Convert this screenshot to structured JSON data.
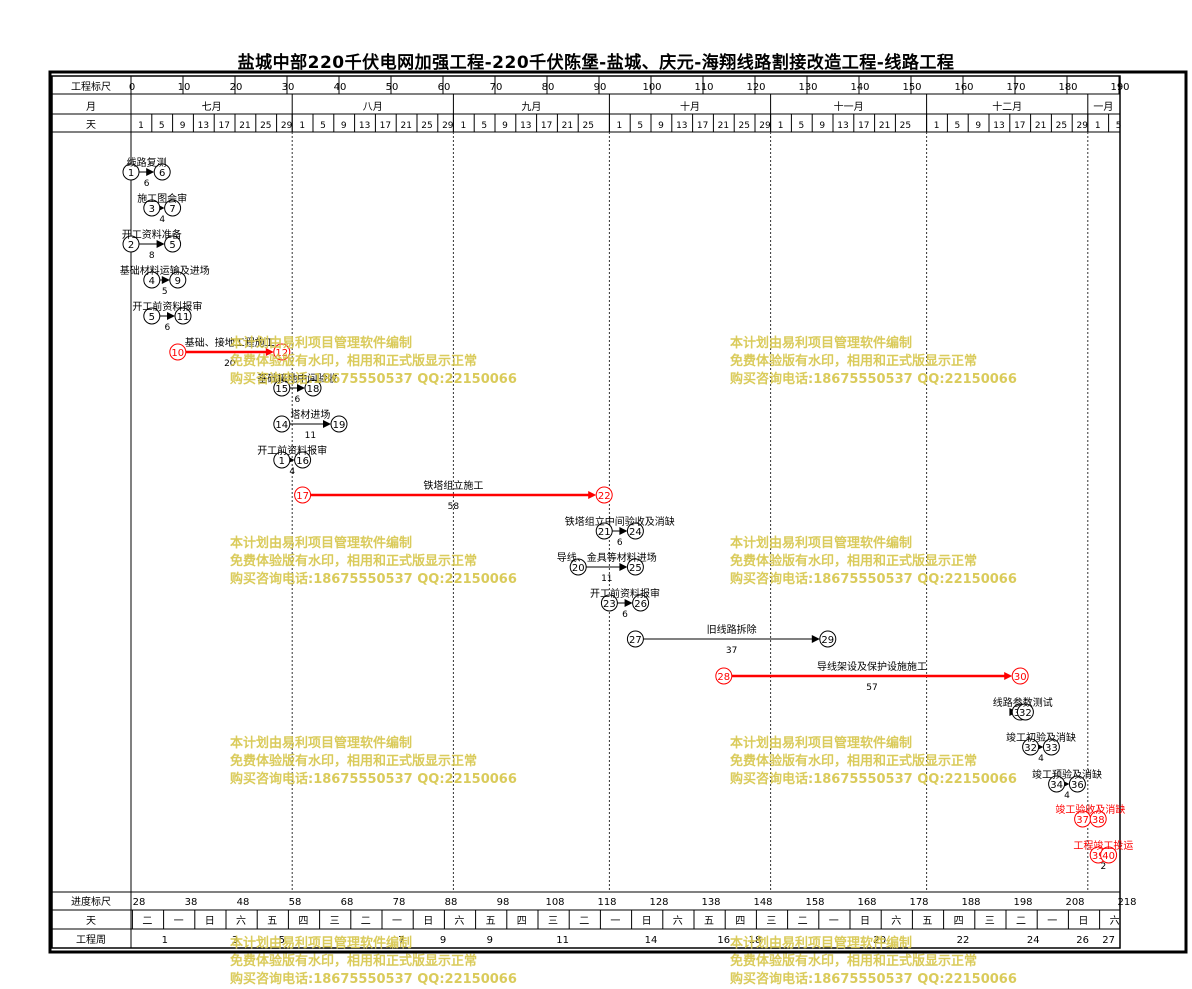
{
  "title": "盐城中部220千伏电网加强工程-220千伏陈堡-盐城、庆元-海翔线路割接改造工程-线路工程",
  "header": {
    "scale_label": "工程标尺",
    "month_label": "月",
    "day_label": "天",
    "scale_ticks": [
      "0",
      "10",
      "20",
      "30",
      "40",
      "50",
      "60",
      "70",
      "80",
      "90",
      "100",
      "110",
      "120",
      "130",
      "140",
      "150",
      "160",
      "170",
      "180",
      "190"
    ],
    "months": [
      {
        "label": "七月",
        "start": 0,
        "end": 31
      },
      {
        "label": "八月",
        "start": 31,
        "end": 62
      },
      {
        "label": "九月",
        "start": 62,
        "end": 92
      },
      {
        "label": "十月",
        "start": 92,
        "end": 123
      },
      {
        "label": "十一月",
        "start": 123,
        "end": 153
      },
      {
        "label": "十二月",
        "start": 153,
        "end": 184
      },
      {
        "label": "一月",
        "start": 184,
        "end": 190
      }
    ],
    "days": [
      {
        "day": "1",
        "month": 0
      },
      {
        "day": "5",
        "month": 0
      },
      {
        "day": "9",
        "month": 0
      },
      {
        "day": "13",
        "month": 0
      },
      {
        "day": "17",
        "month": 0
      },
      {
        "day": "21",
        "month": 0
      },
      {
        "day": "25",
        "month": 0
      },
      {
        "day": "29",
        "month": 0
      },
      {
        "day": "1",
        "month": 31
      },
      {
        "day": "5",
        "month": 31
      },
      {
        "day": "9",
        "month": 31
      },
      {
        "day": "13",
        "month": 31
      },
      {
        "day": "17",
        "month": 31
      },
      {
        "day": "21",
        "month": 31
      },
      {
        "day": "25",
        "month": 31
      },
      {
        "day": "29",
        "month": 31
      },
      {
        "day": "1",
        "month": 62
      },
      {
        "day": "5",
        "month": 62
      },
      {
        "day": "9",
        "month": 62
      },
      {
        "day": "13",
        "month": 62
      },
      {
        "day": "17",
        "month": 62
      },
      {
        "day": "21",
        "month": 62
      },
      {
        "day": "25",
        "month": 62
      },
      {
        "day": "1",
        "month": 92
      },
      {
        "day": "5",
        "month": 92
      },
      {
        "day": "9",
        "month": 92
      },
      {
        "day": "13",
        "month": 92
      },
      {
        "day": "17",
        "month": 92
      },
      {
        "day": "21",
        "month": 92
      },
      {
        "day": "25",
        "month": 92
      },
      {
        "day": "29",
        "month": 92
      },
      {
        "day": "1",
        "month": 123
      },
      {
        "day": "5",
        "month": 123
      },
      {
        "day": "9",
        "month": 123
      },
      {
        "day": "13",
        "month": 123
      },
      {
        "day": "17",
        "month": 123
      },
      {
        "day": "21",
        "month": 123
      },
      {
        "day": "25",
        "month": 123
      },
      {
        "day": "1",
        "month": 153
      },
      {
        "day": "5",
        "month": 153
      },
      {
        "day": "9",
        "month": 153
      },
      {
        "day": "13",
        "month": 153
      },
      {
        "day": "17",
        "month": 153
      },
      {
        "day": "21",
        "month": 153
      },
      {
        "day": "25",
        "month": 153
      },
      {
        "day": "29",
        "month": 153
      },
      {
        "day": "1",
        "month": 184
      },
      {
        "day": "5",
        "month": 184
      }
    ]
  },
  "footer": {
    "progress_label": "进度标尺",
    "weekday_label": "天",
    "week_label": "工程周",
    "progress_ticks": [
      "28",
      "38",
      "48",
      "58",
      "68",
      "78",
      "88",
      "98",
      "108",
      "118",
      "128",
      "138",
      "148",
      "158",
      "168",
      "178",
      "188",
      "198",
      "208",
      "218"
    ],
    "weekdays": [
      {
        "label": "二",
        "d": 2
      },
      {
        "label": "一",
        "d": 8
      },
      {
        "label": "日",
        "d": 14
      },
      {
        "label": "六",
        "d": 20
      },
      {
        "label": "五",
        "d": 26
      },
      {
        "label": "四",
        "d": 32
      },
      {
        "label": "三",
        "d": 38
      },
      {
        "label": "二",
        "d": 44
      },
      {
        "label": "一",
        "d": 50
      },
      {
        "label": "日",
        "d": 56
      },
      {
        "label": "六",
        "d": 62
      },
      {
        "label": "五",
        "d": 68
      },
      {
        "label": "四",
        "d": 74
      },
      {
        "label": "三",
        "d": 80
      },
      {
        "label": "二",
        "d": 86
      },
      {
        "label": "一",
        "d": 92
      },
      {
        "label": "日",
        "d": 98
      },
      {
        "label": "六",
        "d": 104
      },
      {
        "label": "五",
        "d": 110
      },
      {
        "label": "四",
        "d": 116
      },
      {
        "label": "三",
        "d": 122
      },
      {
        "label": "二",
        "d": 128
      },
      {
        "label": "一",
        "d": 134
      },
      {
        "label": "日",
        "d": 140
      },
      {
        "label": "六",
        "d": 146
      },
      {
        "label": "五",
        "d": 152
      },
      {
        "label": "四",
        "d": 158
      },
      {
        "label": "三",
        "d": 164
      },
      {
        "label": "二",
        "d": 170
      },
      {
        "label": "一",
        "d": 176
      },
      {
        "label": "日",
        "d": 182
      },
      {
        "label": "六",
        "d": 188
      }
    ],
    "weeks": [
      {
        "label": "1",
        "d": 6.5
      },
      {
        "label": "3",
        "d": 20
      },
      {
        "label": "5",
        "d": 29
      },
      {
        "label": "7",
        "d": 52
      },
      {
        "label": "9",
        "d": 60
      },
      {
        "label": "9",
        "d": 69
      },
      {
        "label": "11",
        "d": 83
      },
      {
        "label": "14",
        "d": 100
      },
      {
        "label": "16",
        "d": 114
      },
      {
        "label": "18",
        "d": 120
      },
      {
        "label": "20",
        "d": 144
      },
      {
        "label": "22",
        "d": 160
      },
      {
        "label": "24",
        "d": 173.5
      },
      {
        "label": "26",
        "d": 183
      },
      {
        "label": "27",
        "d": 188
      }
    ]
  },
  "tasks": [
    {
      "from": "1",
      "to": "6",
      "label": "线路复测",
      "dur": "6",
      "x1": 0,
      "x2": 6,
      "row": 0,
      "critical": false
    },
    {
      "from": "3",
      "to": "7",
      "label": "施工图会审",
      "dur": "4",
      "x1": 4,
      "x2": 8,
      "row": 1,
      "critical": false
    },
    {
      "from": "2",
      "to": "5",
      "label": "开工资料准备",
      "dur": "8",
      "x1": 0,
      "x2": 8,
      "row": 2,
      "critical": false
    },
    {
      "from": "4",
      "to": "9",
      "label": "基础材料运输及进场",
      "dur": "5",
      "x1": 4,
      "x2": 9,
      "row": 3,
      "critical": false
    },
    {
      "from": "5",
      "to": "11",
      "label": "开工前资料报审",
      "dur": "6",
      "x1": 4,
      "x2": 10,
      "row": 4,
      "critical": false
    },
    {
      "from": "10",
      "to": "12",
      "label": "基础、接地工程施工",
      "dur": "20",
      "x1": 9,
      "x2": 29,
      "row": 5,
      "critical": true
    },
    {
      "from": "15",
      "to": "18",
      "label": "基础接地中间验收",
      "dur": "6",
      "x1": 29,
      "x2": 35,
      "row": 6,
      "critical": false
    },
    {
      "from": "14",
      "to": "19",
      "label": "塔材进场",
      "dur": "11",
      "x1": 29,
      "x2": 40,
      "row": 7,
      "critical": false
    },
    {
      "from": "1",
      "to": "16",
      "label": "开工前资料报审",
      "dur": "4",
      "x1": 29,
      "x2": 33,
      "row": 8,
      "critical": false
    },
    {
      "from": "17",
      "to": "22",
      "label": "铁塔组立施工",
      "dur": "58",
      "x1": 33,
      "x2": 91,
      "row": 9,
      "critical": true
    },
    {
      "from": "21",
      "to": "24",
      "label": "铁塔组立中间验收及消缺",
      "dur": "6",
      "x1": 91,
      "x2": 97,
      "row": 10,
      "critical": false
    },
    {
      "from": "20",
      "to": "25",
      "label": "导线、金具等材料进场",
      "dur": "11",
      "x1": 86,
      "x2": 97,
      "row": 11,
      "critical": false
    },
    {
      "from": "23",
      "to": "26",
      "label": "开工前资料报审",
      "dur": "6",
      "x1": 92,
      "x2": 98,
      "row": 12,
      "critical": false
    },
    {
      "from": "27",
      "to": "29",
      "label": "旧线路拆除",
      "dur": "37",
      "x1": 97,
      "x2": 134,
      "row": 13,
      "critical": false
    },
    {
      "from": "28",
      "to": "30",
      "label": "导线架设及保护设施施工",
      "dur": "57",
      "x1": 114,
      "x2": 171,
      "row": 14,
      "critical": true
    },
    {
      "from": "31",
      "to": "32",
      "label": "线路参数测试",
      "dur": "",
      "x1": 171,
      "x2": 172,
      "row": 15,
      "critical": false
    },
    {
      "from": "32",
      "to": "33",
      "label": "竣工初验及消缺",
      "dur": "4",
      "x1": 173,
      "x2": 177,
      "row": 16,
      "critical": false
    },
    {
      "from": "34",
      "to": "36",
      "label": "竣工预验及消缺",
      "dur": "4",
      "x1": 178,
      "x2": 182,
      "row": 17,
      "critical": false
    },
    {
      "from": "37",
      "to": "38",
      "label": "竣工验收及消缺",
      "dur": "",
      "x1": 183,
      "x2": 186,
      "row": 18,
      "critical": true
    },
    {
      "from": "39",
      "to": "40",
      "label": "工程竣工投运",
      "dur": "2",
      "x1": 186,
      "x2": 188,
      "row": 19,
      "critical": true
    }
  ],
  "watermark": {
    "line1": "本计划由易利项目管理软件编制",
    "line2": "免费体验版有水印，相用和正式版显示正常",
    "line3": "购买咨询电话:18675550537 QQ:22150066"
  },
  "colors": {
    "critical": "#ff0000",
    "normal": "#000000",
    "grid": "#555555",
    "watermark": "#d6c64a"
  }
}
